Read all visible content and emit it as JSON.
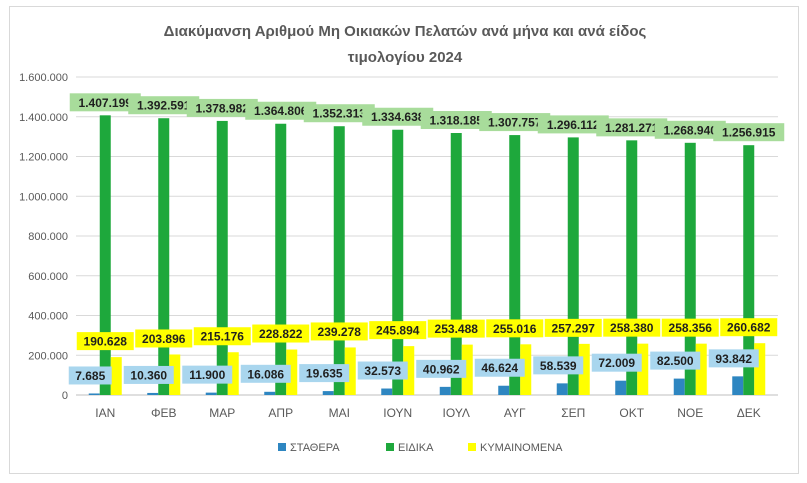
{
  "chart_data": {
    "type": "bar",
    "title_line1": "Διακύμανση Αριθμού Μη Οικιακών Πελατών ανά μήνα και ανά είδος",
    "title_line2": "τιμολογίου 2024",
    "categories": [
      "ΙΑΝ",
      "ΦΕΒ",
      "ΜΑΡ",
      "ΑΠΡ",
      "ΜΑΙ",
      "ΙΟΥΝ",
      "ΙΟΥΛ",
      "ΑΥΓ",
      "ΣΕΠ",
      "ΟΚΤ",
      "ΝΟΕ",
      "ΔΕΚ"
    ],
    "y_ticks": [
      "0",
      "200.000",
      "400.000",
      "600.000",
      "800.000",
      "1.000.000",
      "1.200.000",
      "1.400.000",
      "1.600.000"
    ],
    "ylim": [
      0,
      1600000
    ],
    "grid": true,
    "legend_position": "bottom",
    "series": [
      {
        "name": "ΣΤΑΘΕΡΑ",
        "color": "#2e86c1",
        "label_bg": "#a9d6ee",
        "values": [
          7685,
          10360,
          11900,
          16086,
          19635,
          32573,
          40962,
          46624,
          58539,
          72009,
          82500,
          93842
        ],
        "labels": [
          "7.685",
          "10.360",
          "11.900",
          "16.086",
          "19.635",
          "32.573",
          "40.962",
          "46.624",
          "58.539",
          "72.009",
          "82.500",
          "93.842"
        ]
      },
      {
        "name": "ΕΙΔΙΚΑ",
        "color": "#1ea83c",
        "label_bg": "#a8dc9b",
        "values": [
          1407199,
          1392591,
          1378982,
          1364806,
          1352313,
          1334638,
          1318185,
          1307757,
          1296112,
          1281271,
          1268940,
          1256915
        ],
        "labels": [
          "1.407.199",
          "1.392.591",
          "1.378.982",
          "1.364.806",
          "1.352.313",
          "1.334.638",
          "1.318.185",
          "1.307.757",
          "1.296.112",
          "1.281.271",
          "1.268.940",
          "1.256.915"
        ]
      },
      {
        "name": "ΚΥΜΑΙΝΟΜΕΝΑ",
        "color": "#ffff00",
        "label_bg": "#ffff00",
        "values": [
          190628,
          203896,
          215176,
          228822,
          239278,
          245894,
          253488,
          255016,
          257297,
          258380,
          258356,
          260682
        ],
        "labels": [
          "190.628",
          "203.896",
          "215.176",
          "228.822",
          "239.278",
          "245.894",
          "253.488",
          "255.016",
          "257.297",
          "258.380",
          "258.356",
          "260.682"
        ]
      }
    ]
  }
}
